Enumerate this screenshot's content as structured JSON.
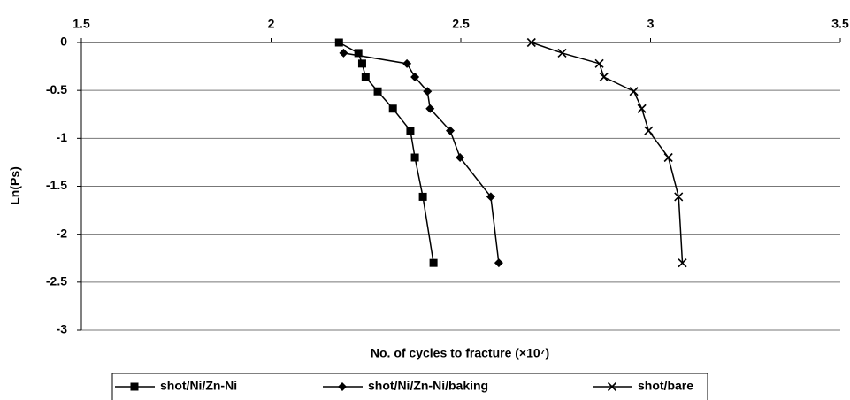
{
  "chart_data": {
    "type": "line",
    "x_label": "No. of cycles to fracture (×10⁷)",
    "y_label": "Ln(Ps)",
    "xlim": [
      1.5,
      3.5
    ],
    "xticks": [
      1.5,
      2,
      2.5,
      3,
      3.5
    ],
    "ylim": [
      -3,
      0
    ],
    "yticks": [
      0,
      -0.5,
      -1,
      -1.5,
      -2,
      -2.5,
      -3
    ],
    "grid": true,
    "x_axis_position": "top",
    "legend": "bottom",
    "series": [
      {
        "name": "shot/Ni/Zn-Ni",
        "color": "#000000",
        "marker": "square",
        "x": [
          2.179,
          2.23,
          2.24,
          2.249,
          2.281,
          2.321,
          2.367,
          2.379,
          2.4,
          2.428
        ],
        "values": [
          0,
          -0.11,
          -0.22,
          -0.36,
          -0.51,
          -0.69,
          -0.92,
          -1.2,
          -1.61,
          -2.3
        ]
      },
      {
        "name": "shot/Ni/Zn-Ni/baking",
        "color": "#000000",
        "marker": "diamond",
        "x": [
          2.191,
          2.358,
          2.379,
          2.412,
          2.419,
          2.472,
          2.498,
          2.579,
          2.6
        ],
        "values": [
          -0.11,
          -0.22,
          -0.36,
          -0.51,
          -0.69,
          -0.92,
          -1.2,
          -1.61,
          -2.3
        ]
      },
      {
        "name": "shot/bare",
        "color": "#000000",
        "marker": "x",
        "x": [
          2.686,
          2.767,
          2.865,
          2.877,
          2.956,
          2.977,
          2.995,
          3.047,
          3.074,
          3.084
        ],
        "values": [
          0,
          -0.11,
          -0.22,
          -0.36,
          -0.51,
          -0.69,
          -0.92,
          -1.2,
          -1.61,
          -2.3
        ]
      }
    ]
  }
}
